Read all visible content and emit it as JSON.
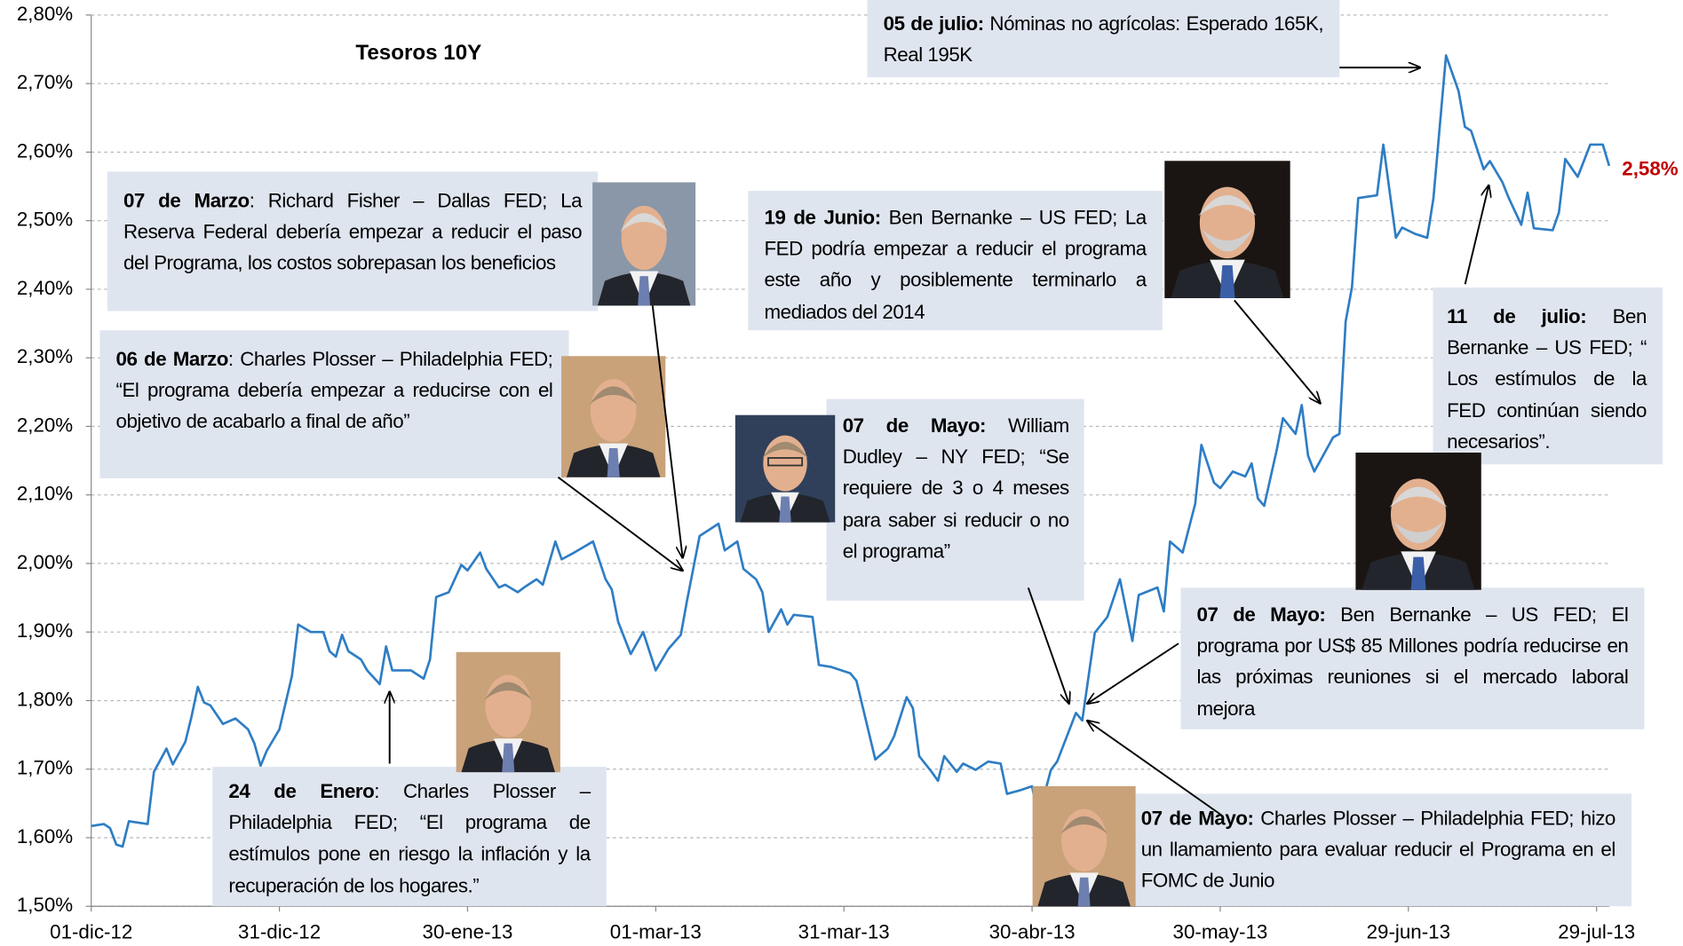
{
  "chart_data": {
    "type": "line",
    "title": "Tesoros 10Y",
    "xlim": [
      "2012-12-01",
      "2013-08-01"
    ],
    "xticks": [
      {
        "value": "2012-12-01",
        "label": "01-dic-12"
      },
      {
        "value": "2012-12-31",
        "label": "31-dic-12"
      },
      {
        "value": "2013-01-30",
        "label": "30-ene-13"
      },
      {
        "value": "2013-03-01",
        "label": "01-mar-13"
      },
      {
        "value": "2013-03-31",
        "label": "31-mar-13"
      },
      {
        "value": "2013-04-30",
        "label": "30-abr-13"
      },
      {
        "value": "2013-05-30",
        "label": "30-may-13"
      },
      {
        "value": "2013-06-29",
        "label": "29-jun-13"
      },
      {
        "value": "2013-07-29",
        "label": "29-jul-13"
      }
    ],
    "ylim": [
      1.5,
      2.8
    ],
    "yticks": [
      {
        "value": 1.5,
        "label": "1,50%"
      },
      {
        "value": 1.6,
        "label": "1,60%"
      },
      {
        "value": 1.7,
        "label": "1,70%"
      },
      {
        "value": 1.8,
        "label": "1,80%"
      },
      {
        "value": 1.9,
        "label": "1,90%"
      },
      {
        "value": 2.0,
        "label": "2,00%"
      },
      {
        "value": 2.1,
        "label": "2,10%"
      },
      {
        "value": 2.2,
        "label": "2,20%"
      },
      {
        "value": 2.3,
        "label": "2,30%"
      },
      {
        "value": 2.4,
        "label": "2,40%"
      },
      {
        "value": 2.5,
        "label": "2,50%"
      },
      {
        "value": 2.6,
        "label": "2,60%"
      },
      {
        "value": 2.7,
        "label": "2,70%"
      },
      {
        "value": 2.8,
        "label": "2,80%"
      }
    ],
    "grid": true,
    "x": [
      "2012-12-01",
      "2012-12-03",
      "2012-12-04",
      "2012-12-05",
      "2012-12-06",
      "2012-12-07",
      "2012-12-10",
      "2012-12-11",
      "2012-12-13",
      "2012-12-14",
      "2012-12-16",
      "2012-12-17",
      "2012-12-18",
      "2012-12-19",
      "2012-12-20",
      "2012-12-22",
      "2012-12-24",
      "2012-12-26",
      "2012-12-27",
      "2012-12-28",
      "2012-12-29",
      "2012-12-31",
      "2013-01-02",
      "2013-01-03",
      "2013-01-05",
      "2013-01-07",
      "2013-01-08",
      "2013-01-09",
      "2013-01-10",
      "2013-01-11",
      "2013-01-13",
      "2013-01-14",
      "2013-01-16",
      "2013-01-17",
      "2013-01-18",
      "2013-01-21",
      "2013-01-23",
      "2013-01-24",
      "2013-01-25",
      "2013-01-27",
      "2013-01-29",
      "2013-01-30",
      "2013-02-01",
      "2013-02-02",
      "2013-02-04",
      "2013-02-05",
      "2013-02-07",
      "2013-02-08",
      "2013-02-10",
      "2013-02-11",
      "2013-02-13",
      "2013-02-14",
      "2013-02-16",
      "2013-02-19",
      "2013-02-21",
      "2013-02-22",
      "2013-02-23",
      "2013-02-25",
      "2013-02-27",
      "2013-03-01",
      "2013-03-03",
      "2013-03-05",
      "2013-03-06",
      "2013-03-08",
      "2013-03-11",
      "2013-03-12",
      "2013-03-14",
      "2013-03-15",
      "2013-03-17",
      "2013-03-18",
      "2013-03-19",
      "2013-03-21",
      "2013-03-22",
      "2013-03-23",
      "2013-03-26",
      "2013-03-27",
      "2013-03-29",
      "2013-04-01",
      "2013-04-02",
      "2013-04-05",
      "2013-04-07",
      "2013-04-08",
      "2013-04-10",
      "2013-04-11",
      "2013-04-12",
      "2013-04-14",
      "2013-04-15",
      "2013-04-16",
      "2013-04-18",
      "2013-04-19",
      "2013-04-21",
      "2013-04-23",
      "2013-04-25",
      "2013-04-26",
      "2013-04-28",
      "2013-04-30",
      "2013-05-01",
      "2013-05-03",
      "2013-05-04",
      "2013-05-05",
      "2013-05-07",
      "2013-05-08",
      "2013-05-10",
      "2013-05-12",
      "2013-05-14",
      "2013-05-16",
      "2013-05-17",
      "2013-05-20",
      "2013-05-21",
      "2013-05-22",
      "2013-05-24",
      "2013-05-26",
      "2013-05-27",
      "2013-05-29",
      "2013-05-30",
      "2013-06-01",
      "2013-06-03",
      "2013-06-04",
      "2013-06-05",
      "2013-06-06",
      "2013-06-08",
      "2013-06-09",
      "2013-06-11",
      "2013-06-12",
      "2013-06-13",
      "2013-06-14",
      "2013-06-17",
      "2013-06-18",
      "2013-06-19",
      "2013-06-20",
      "2013-06-21",
      "2013-06-24",
      "2013-06-25",
      "2013-06-27",
      "2013-06-28",
      "2013-06-30",
      "2013-07-02",
      "2013-07-03",
      "2013-07-05",
      "2013-07-07",
      "2013-07-08",
      "2013-07-09",
      "2013-07-11",
      "2013-07-12",
      "2013-07-14",
      "2013-07-15",
      "2013-07-17",
      "2013-07-18",
      "2013-07-19",
      "2013-07-22",
      "2013-07-23",
      "2013-07-24",
      "2013-07-26",
      "2013-07-28",
      "2013-07-30",
      "2013-07-31"
    ],
    "series": [
      {
        "name": "Tesoros 10Y",
        "color": "#2e7dc4",
        "values": [
          1.617,
          1.62,
          1.614,
          1.59,
          1.587,
          1.624,
          1.62,
          1.696,
          1.73,
          1.707,
          1.74,
          1.777,
          1.82,
          1.797,
          1.793,
          1.766,
          1.774,
          1.758,
          1.738,
          1.705,
          1.727,
          1.758,
          1.836,
          1.911,
          1.9,
          1.9,
          1.872,
          1.864,
          1.896,
          1.872,
          1.86,
          1.844,
          1.824,
          1.879,
          1.844,
          1.844,
          1.832,
          1.86,
          1.951,
          1.958,
          1.998,
          1.99,
          2.016,
          1.992,
          1.965,
          1.969,
          1.958,
          1.965,
          1.977,
          1.969,
          2.032,
          2.006,
          2.016,
          2.032,
          1.977,
          1.962,
          1.915,
          1.868,
          1.9,
          1.844,
          1.875,
          1.896,
          1.946,
          2.04,
          2.058,
          2.019,
          2.032,
          1.992,
          1.977,
          1.958,
          1.9,
          1.933,
          1.911,
          1.925,
          1.922,
          1.852,
          1.849,
          1.84,
          1.829,
          1.714,
          1.73,
          1.748,
          1.805,
          1.789,
          1.719,
          1.696,
          1.683,
          1.719,
          1.696,
          1.708,
          1.699,
          1.711,
          1.708,
          1.664,
          1.669,
          1.675,
          1.63,
          1.699,
          1.711,
          1.735,
          1.782,
          1.771,
          1.899,
          1.922,
          1.977,
          1.887,
          1.954,
          1.965,
          1.93,
          2.032,
          2.016,
          2.087,
          2.173,
          2.118,
          2.11,
          2.134,
          2.127,
          2.146,
          2.095,
          2.084,
          2.165,
          2.212,
          2.189,
          2.231,
          2.157,
          2.134,
          2.184,
          2.189,
          2.353,
          2.403,
          2.533,
          2.537,
          2.611,
          2.475,
          2.49,
          2.481,
          2.475,
          2.533,
          2.741,
          2.689,
          2.637,
          2.631,
          2.575,
          2.587,
          2.556,
          2.533,
          2.494,
          2.541,
          2.489,
          2.486,
          2.512,
          2.59,
          2.564,
          2.611,
          2.611,
          2.58
        ],
        "value_labels": [
          null,
          null,
          null,
          null,
          null,
          null,
          null,
          null,
          null,
          null,
          null,
          null,
          null,
          null,
          null,
          null,
          null,
          null,
          null,
          null,
          null,
          null,
          null,
          null,
          null,
          null,
          null,
          null,
          null,
          null,
          null,
          null,
          null,
          null,
          null,
          null,
          null,
          null,
          null,
          null,
          null,
          null,
          null,
          null,
          null,
          null,
          null,
          null,
          null,
          null,
          null,
          null,
          null,
          null,
          null,
          null,
          null,
          null,
          null,
          null,
          null,
          null,
          null,
          null,
          null,
          null,
          null,
          null,
          null,
          null,
          null,
          null,
          null,
          null,
          null,
          null,
          null,
          null,
          null,
          null,
          null,
          null,
          null,
          null,
          null,
          null,
          null,
          null,
          null,
          null,
          null,
          null,
          null,
          null,
          null,
          null,
          null,
          null,
          null,
          null,
          null,
          null,
          null,
          null,
          null,
          null,
          null,
          null,
          null,
          null,
          null,
          null,
          null,
          null,
          null,
          null,
          null,
          null,
          null,
          null,
          null,
          null,
          null,
          null,
          null,
          null,
          null,
          null,
          null,
          null,
          null,
          null,
          null,
          null,
          null,
          null,
          null,
          null,
          null,
          null,
          null,
          null,
          null,
          null,
          null,
          null,
          null,
          null,
          null,
          null,
          null,
          null,
          null,
          null,
          null,
          "2,58%"
        ]
      }
    ],
    "annotations": [
      {
        "lead": "07 de Marzo",
        "text": ": Richard Fisher – Dallas FED;  La Reserva Federal debería empezar a reducir el paso del Programa, los costos sobrepasan los beneficios"
      },
      {
        "lead": "06 de Marzo",
        "text": ": Charles Plosser – Philadelphia FED;  “El programa debería empezar a reducirse con el objetivo de acabarlo a final de año”"
      },
      {
        "lead": "19 de Junio:",
        "text": " Ben Bernanke – US FED; La FED podría empezar a reducir el programa este año y posiblemente terminarlo a mediados del 2014"
      },
      {
        "lead": "05 de julio:",
        "text": " Nóminas no agrícolas: Esperado 165K, Real 195K"
      },
      {
        "lead": "11 de julio:",
        "text": " Ben Bernanke – US FED; “ Los estímulos de la FED continúan siendo necesarios”."
      },
      {
        "lead": "07 de Mayo:",
        "text": " William Dudley – NY FED; “Se requiere de 3 o 4 meses para saber si reducir o no el programa”"
      },
      {
        "lead": "07 de Mayo:",
        "text": " Ben Bernanke – US FED; El programa por US$ 85 Millones podría reducirse en las próximas reuniones si el mercado laboral mejora"
      },
      {
        "lead": "24 de Enero",
        "text": ": Charles Plosser – Philadelphia FED; “El programa de estímulos pone en  riesgo la inflación y la recuperación de los hogares.”"
      },
      {
        "lead": "07 de Mayo:",
        "text": " Charles Plosser – Philadelphia FED; hizo un llamamiento para evaluar reducir el Programa en el FOMC de Junio"
      }
    ]
  }
}
